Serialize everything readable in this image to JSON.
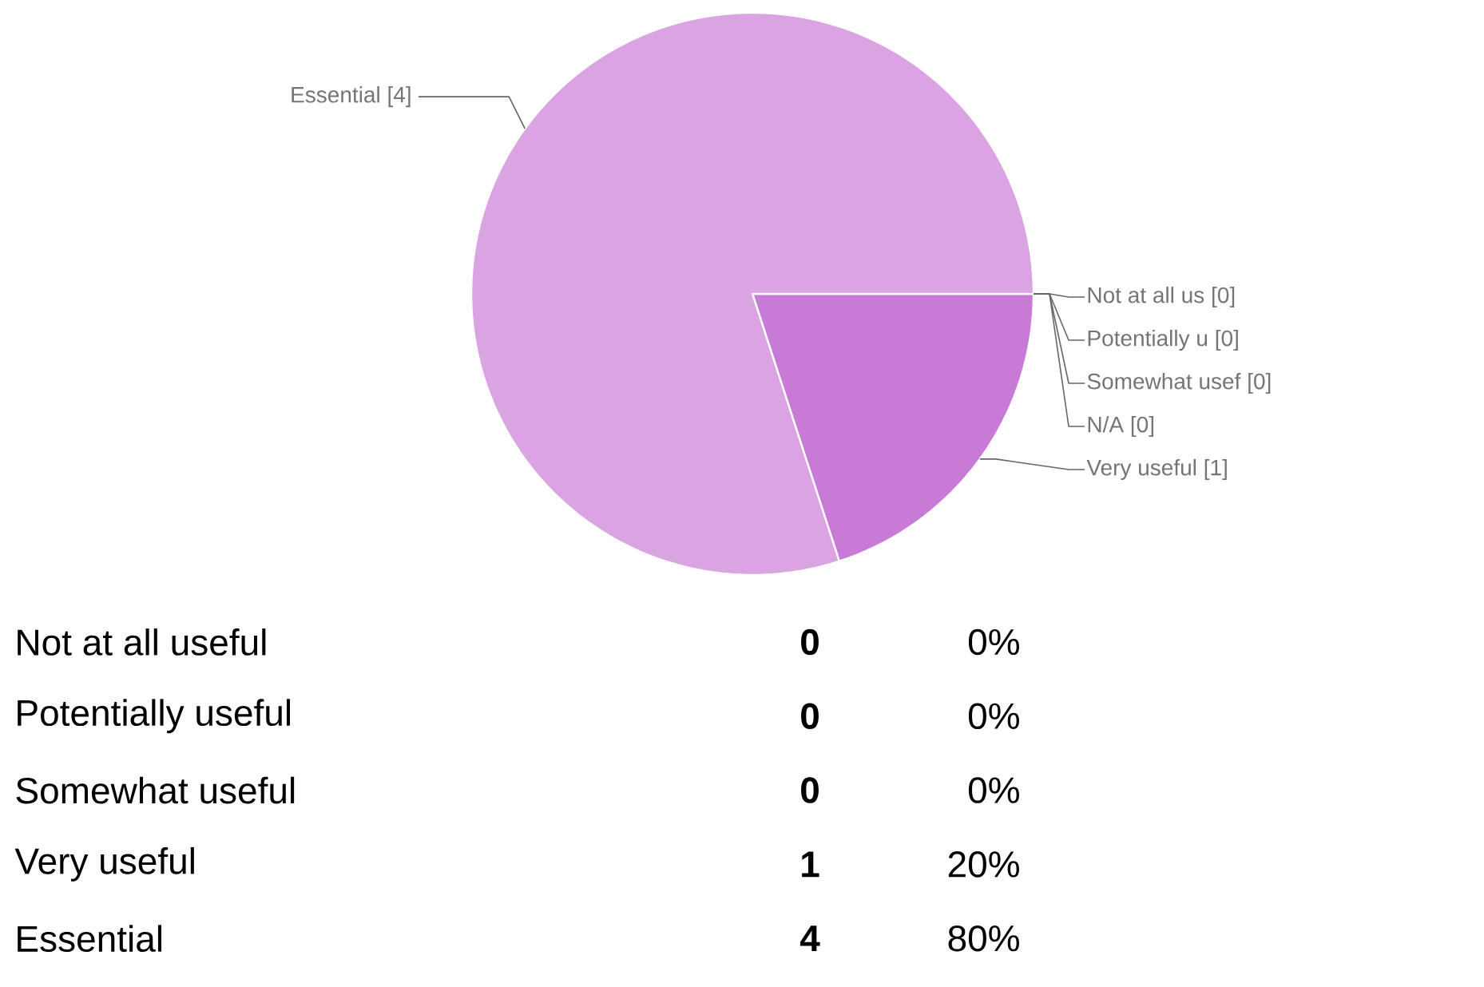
{
  "chart_data": [
    {
      "type": "pie",
      "categories": [
        "Not at all us",
        "Potentially u",
        "Somewhat usef",
        "N/A",
        "Very useful",
        "Essential"
      ],
      "values": [
        0,
        0,
        0,
        0,
        1,
        4
      ],
      "value_labels": [
        "[0]",
        "[0]",
        "[0]",
        "[0]",
        "[1]",
        "[4]"
      ],
      "colors": [
        "#e8c2ee",
        "#d9a0e2",
        "#b865c8",
        "#a152b3",
        "#c77bd6",
        "#daa3e2"
      ]
    },
    {
      "type": "other",
      "categories": [
        "Not at all useful",
        "Potentially useful",
        "Somewhat useful",
        "Very useful",
        "Essential"
      ],
      "series": [
        {
          "values": [
            0,
            0,
            0,
            1,
            4
          ]
        }
      ],
      "annotations": [
        "0%",
        "0%",
        "0%",
        "20%",
        "80%"
      ],
      "data_labels": true
    }
  ]
}
